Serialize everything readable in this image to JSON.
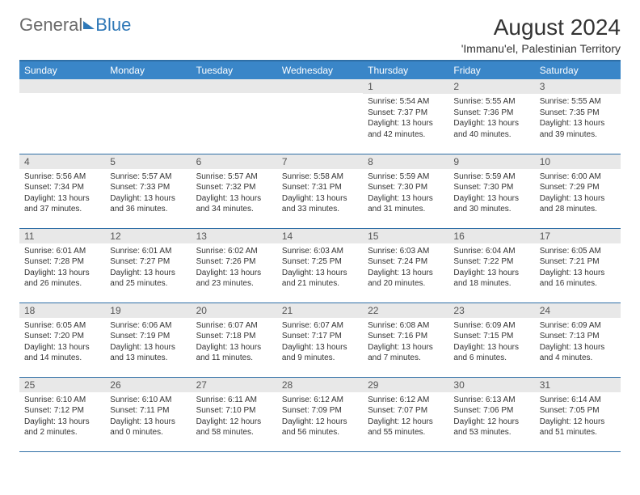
{
  "logo": {
    "part1": "General",
    "part2": "Blue"
  },
  "title": "August 2024",
  "subtitle": "'Immanu'el, Palestinian Territory",
  "colors": {
    "header_bg": "#3a86c8",
    "header_border": "#2f6fa6",
    "daynum_bg": "#e8e8e8",
    "text": "#333333",
    "logo_gray": "#6a6a6a",
    "logo_blue": "#2f78b7",
    "page_bg": "#ffffff"
  },
  "day_headers": [
    "Sunday",
    "Monday",
    "Tuesday",
    "Wednesday",
    "Thursday",
    "Friday",
    "Saturday"
  ],
  "weeks": [
    [
      {
        "n": "",
        "lines": [
          "",
          "",
          "",
          ""
        ]
      },
      {
        "n": "",
        "lines": [
          "",
          "",
          "",
          ""
        ]
      },
      {
        "n": "",
        "lines": [
          "",
          "",
          "",
          ""
        ]
      },
      {
        "n": "",
        "lines": [
          "",
          "",
          "",
          ""
        ]
      },
      {
        "n": "1",
        "lines": [
          "Sunrise: 5:54 AM",
          "Sunset: 7:37 PM",
          "Daylight: 13 hours",
          "and 42 minutes."
        ]
      },
      {
        "n": "2",
        "lines": [
          "Sunrise: 5:55 AM",
          "Sunset: 7:36 PM",
          "Daylight: 13 hours",
          "and 40 minutes."
        ]
      },
      {
        "n": "3",
        "lines": [
          "Sunrise: 5:55 AM",
          "Sunset: 7:35 PM",
          "Daylight: 13 hours",
          "and 39 minutes."
        ]
      }
    ],
    [
      {
        "n": "4",
        "lines": [
          "Sunrise: 5:56 AM",
          "Sunset: 7:34 PM",
          "Daylight: 13 hours",
          "and 37 minutes."
        ]
      },
      {
        "n": "5",
        "lines": [
          "Sunrise: 5:57 AM",
          "Sunset: 7:33 PM",
          "Daylight: 13 hours",
          "and 36 minutes."
        ]
      },
      {
        "n": "6",
        "lines": [
          "Sunrise: 5:57 AM",
          "Sunset: 7:32 PM",
          "Daylight: 13 hours",
          "and 34 minutes."
        ]
      },
      {
        "n": "7",
        "lines": [
          "Sunrise: 5:58 AM",
          "Sunset: 7:31 PM",
          "Daylight: 13 hours",
          "and 33 minutes."
        ]
      },
      {
        "n": "8",
        "lines": [
          "Sunrise: 5:59 AM",
          "Sunset: 7:30 PM",
          "Daylight: 13 hours",
          "and 31 minutes."
        ]
      },
      {
        "n": "9",
        "lines": [
          "Sunrise: 5:59 AM",
          "Sunset: 7:30 PM",
          "Daylight: 13 hours",
          "and 30 minutes."
        ]
      },
      {
        "n": "10",
        "lines": [
          "Sunrise: 6:00 AM",
          "Sunset: 7:29 PM",
          "Daylight: 13 hours",
          "and 28 minutes."
        ]
      }
    ],
    [
      {
        "n": "11",
        "lines": [
          "Sunrise: 6:01 AM",
          "Sunset: 7:28 PM",
          "Daylight: 13 hours",
          "and 26 minutes."
        ]
      },
      {
        "n": "12",
        "lines": [
          "Sunrise: 6:01 AM",
          "Sunset: 7:27 PM",
          "Daylight: 13 hours",
          "and 25 minutes."
        ]
      },
      {
        "n": "13",
        "lines": [
          "Sunrise: 6:02 AM",
          "Sunset: 7:26 PM",
          "Daylight: 13 hours",
          "and 23 minutes."
        ]
      },
      {
        "n": "14",
        "lines": [
          "Sunrise: 6:03 AM",
          "Sunset: 7:25 PM",
          "Daylight: 13 hours",
          "and 21 minutes."
        ]
      },
      {
        "n": "15",
        "lines": [
          "Sunrise: 6:03 AM",
          "Sunset: 7:24 PM",
          "Daylight: 13 hours",
          "and 20 minutes."
        ]
      },
      {
        "n": "16",
        "lines": [
          "Sunrise: 6:04 AM",
          "Sunset: 7:22 PM",
          "Daylight: 13 hours",
          "and 18 minutes."
        ]
      },
      {
        "n": "17",
        "lines": [
          "Sunrise: 6:05 AM",
          "Sunset: 7:21 PM",
          "Daylight: 13 hours",
          "and 16 minutes."
        ]
      }
    ],
    [
      {
        "n": "18",
        "lines": [
          "Sunrise: 6:05 AM",
          "Sunset: 7:20 PM",
          "Daylight: 13 hours",
          "and 14 minutes."
        ]
      },
      {
        "n": "19",
        "lines": [
          "Sunrise: 6:06 AM",
          "Sunset: 7:19 PM",
          "Daylight: 13 hours",
          "and 13 minutes."
        ]
      },
      {
        "n": "20",
        "lines": [
          "Sunrise: 6:07 AM",
          "Sunset: 7:18 PM",
          "Daylight: 13 hours",
          "and 11 minutes."
        ]
      },
      {
        "n": "21",
        "lines": [
          "Sunrise: 6:07 AM",
          "Sunset: 7:17 PM",
          "Daylight: 13 hours",
          "and 9 minutes."
        ]
      },
      {
        "n": "22",
        "lines": [
          "Sunrise: 6:08 AM",
          "Sunset: 7:16 PM",
          "Daylight: 13 hours",
          "and 7 minutes."
        ]
      },
      {
        "n": "23",
        "lines": [
          "Sunrise: 6:09 AM",
          "Sunset: 7:15 PM",
          "Daylight: 13 hours",
          "and 6 minutes."
        ]
      },
      {
        "n": "24",
        "lines": [
          "Sunrise: 6:09 AM",
          "Sunset: 7:13 PM",
          "Daylight: 13 hours",
          "and 4 minutes."
        ]
      }
    ],
    [
      {
        "n": "25",
        "lines": [
          "Sunrise: 6:10 AM",
          "Sunset: 7:12 PM",
          "Daylight: 13 hours",
          "and 2 minutes."
        ]
      },
      {
        "n": "26",
        "lines": [
          "Sunrise: 6:10 AM",
          "Sunset: 7:11 PM",
          "Daylight: 13 hours",
          "and 0 minutes."
        ]
      },
      {
        "n": "27",
        "lines": [
          "Sunrise: 6:11 AM",
          "Sunset: 7:10 PM",
          "Daylight: 12 hours",
          "and 58 minutes."
        ]
      },
      {
        "n": "28",
        "lines": [
          "Sunrise: 6:12 AM",
          "Sunset: 7:09 PM",
          "Daylight: 12 hours",
          "and 56 minutes."
        ]
      },
      {
        "n": "29",
        "lines": [
          "Sunrise: 6:12 AM",
          "Sunset: 7:07 PM",
          "Daylight: 12 hours",
          "and 55 minutes."
        ]
      },
      {
        "n": "30",
        "lines": [
          "Sunrise: 6:13 AM",
          "Sunset: 7:06 PM",
          "Daylight: 12 hours",
          "and 53 minutes."
        ]
      },
      {
        "n": "31",
        "lines": [
          "Sunrise: 6:14 AM",
          "Sunset: 7:05 PM",
          "Daylight: 12 hours",
          "and 51 minutes."
        ]
      }
    ]
  ]
}
